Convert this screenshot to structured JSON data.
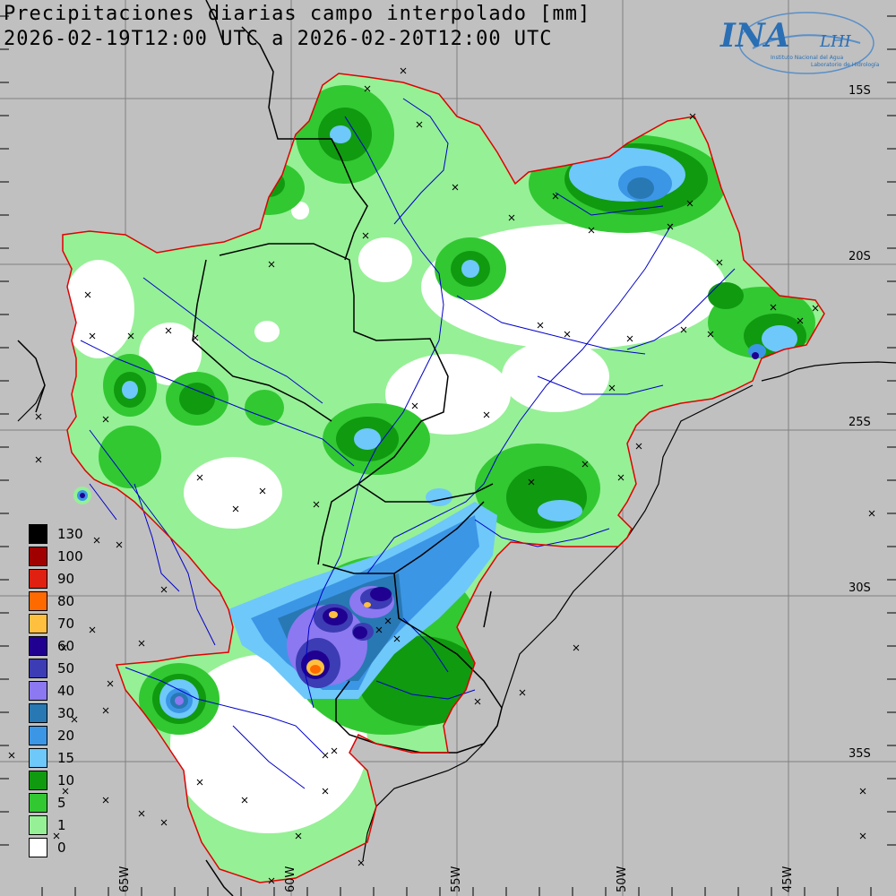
{
  "map": {
    "title_line1": "Precipitaciones diarias campo interpolado [mm]",
    "title_line2": "2026-02-19T12:00 UTC a 2026-02-20T12:00 UTC",
    "logo": {
      "main": "INA",
      "sub": "LHI",
      "caption1": "Instituto Nacional del Agua",
      "caption2": "Laboratorio de Hidrología"
    },
    "lat_labels": [
      "15S",
      "20S",
      "25S",
      "30S",
      "35S"
    ],
    "lon_labels": [
      "65W",
      "60W",
      "55W",
      "50W",
      "45W"
    ],
    "legend": [
      {
        "label": "130",
        "color": "#000000"
      },
      {
        "label": "100",
        "color": "#a00000"
      },
      {
        "label": "90",
        "color": "#e02010"
      },
      {
        "label": "80",
        "color": "#ff6a00"
      },
      {
        "label": "70",
        "color": "#ffc040"
      },
      {
        "label": "60",
        "color": "#200090"
      },
      {
        "label": "50",
        "color": "#3c3cb4"
      },
      {
        "label": "40",
        "color": "#8c78f0"
      },
      {
        "label": "30",
        "color": "#2878b4"
      },
      {
        "label": "20",
        "color": "#3c96e6"
      },
      {
        "label": "15",
        "color": "#6ec8fa"
      },
      {
        "label": "10",
        "color": "#109a10"
      },
      {
        "label": "5",
        "color": "#32c832"
      },
      {
        "label": "1",
        "color": "#96f096"
      },
      {
        "label": "0",
        "color": "#ffffff"
      }
    ],
    "colors": {
      "background": "#c0c0c0",
      "basin_border": "#e00000",
      "country_border": "#000000",
      "rivers": "#0000c8",
      "graticule": "#808080"
    }
  }
}
